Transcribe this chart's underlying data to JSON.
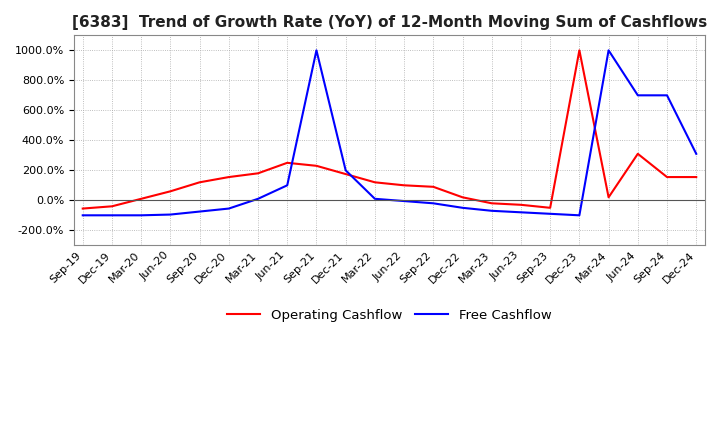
{
  "title": "[6383]  Trend of Growth Rate (YoY) of 12-Month Moving Sum of Cashflows",
  "title_fontsize": 11,
  "ylim": [
    -300,
    1100
  ],
  "yticks": [
    -200,
    0,
    200,
    400,
    600,
    800,
    1000
  ],
  "background_color": "#ffffff",
  "grid_color": "#aaaaaa",
  "legend_labels": [
    "Operating Cashflow",
    "Free Cashflow"
  ],
  "legend_colors": [
    "#ff0000",
    "#0000ff"
  ],
  "x_labels": [
    "Sep-19",
    "Dec-19",
    "Mar-20",
    "Jun-20",
    "Sep-20",
    "Dec-20",
    "Mar-21",
    "Jun-21",
    "Sep-21",
    "Dec-21",
    "Mar-22",
    "Jun-22",
    "Sep-22",
    "Dec-22",
    "Mar-23",
    "Jun-23",
    "Sep-23",
    "Dec-23",
    "Mar-24",
    "Jun-24",
    "Sep-24",
    "Dec-24"
  ],
  "operating_cashflow": [
    -55,
    -40,
    10,
    60,
    120,
    155,
    180,
    250,
    230,
    175,
    120,
    100,
    90,
    20,
    -20,
    -30,
    -50,
    1000,
    20,
    310,
    155,
    155
  ],
  "free_cashflow": [
    -100,
    -100,
    -100,
    -95,
    -75,
    -55,
    10,
    100,
    1000,
    200,
    10,
    -5,
    -20,
    -50,
    -70,
    -80,
    -90,
    -100,
    1000,
    700,
    700,
    310
  ]
}
